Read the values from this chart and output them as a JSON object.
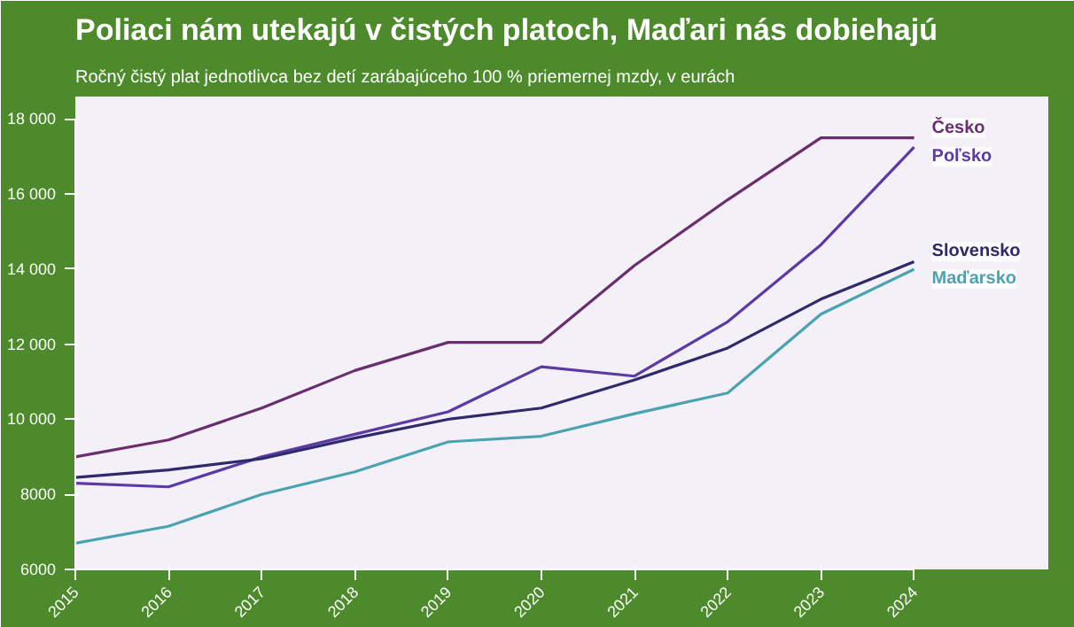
{
  "chart_data": {
    "type": "line",
    "title": "Poliaci nám utekajú v čistých platoch, Maďari nás dobiehajú",
    "subtitle": "Ročný čistý plat jednotlivca bez detí zarábajúceho 100 % priemernej mzdy, v eurách",
    "x": [
      2015,
      2016,
      2017,
      2018,
      2019,
      2020,
      2021,
      2022,
      2023,
      2024
    ],
    "xlim": [
      2015,
      2024
    ],
    "xticks": [
      2015,
      2016,
      2017,
      2018,
      2019,
      2020,
      2021,
      2022,
      2023,
      2024
    ],
    "ylim": [
      6000,
      18000
    ],
    "yticks": [
      {
        "value": 6000,
        "label": "6000"
      },
      {
        "value": 8000,
        "label": "8000"
      },
      {
        "value": 10000,
        "label": "10 000"
      },
      {
        "value": 12000,
        "label": "12 000"
      },
      {
        "value": 14000,
        "label": "14 000"
      },
      {
        "value": 16000,
        "label": "16 000"
      },
      {
        "value": 18000,
        "label": "18 000"
      }
    ],
    "series": [
      {
        "name": "Česko",
        "color": "#6a2d6e",
        "values": [
          9000,
          9450,
          10300,
          11300,
          12050,
          12050,
          14100,
          15850,
          17500,
          17500
        ]
      },
      {
        "name": "Poľsko",
        "color": "#5b3aa6",
        "values": [
          8300,
          8200,
          9000,
          9600,
          10200,
          11400,
          11150,
          12600,
          14650,
          17250
        ]
      },
      {
        "name": "Slovensko",
        "color": "#2e2a6b",
        "values": [
          8450,
          8650,
          8950,
          9500,
          10000,
          10300,
          11050,
          11900,
          13200,
          14200
        ]
      },
      {
        "name": "Maďarsko",
        "color": "#4aa3b0",
        "values": [
          6700,
          7150,
          8000,
          8600,
          9400,
          9550,
          10150,
          10700,
          12800,
          14000
        ]
      }
    ],
    "line_style": "solid"
  }
}
